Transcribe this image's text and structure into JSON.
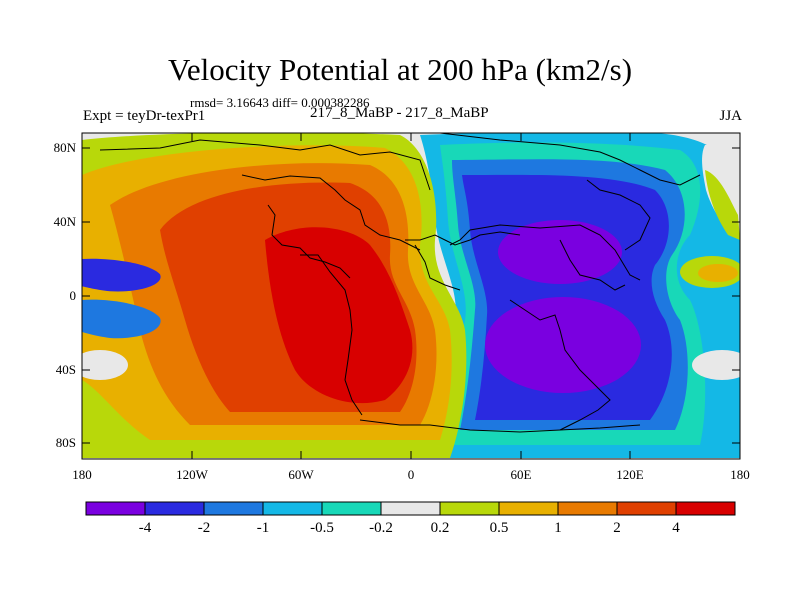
{
  "title": "Velocity Potential at 200 hPa (km2/s)",
  "stats": "rmsd= 3.16643 diff= 0.000382286",
  "experiment": "Expt = teyDr-texPr1",
  "comparison": "217_8_MaBP - 217_8_MaBP",
  "season": "JJA",
  "y_axis_labels": [
    "80N",
    "40N",
    "0",
    "40S",
    "80S"
  ],
  "x_axis_labels": [
    "180",
    "120W",
    "60W",
    "0",
    "60E",
    "120E",
    "180"
  ],
  "colorbar": {
    "labels": [
      "-4",
      "-2",
      "-1",
      "-0.5",
      "-0.2",
      "0.2",
      "0.5",
      "1",
      "2",
      "4"
    ],
    "colors": [
      "#7a00e0",
      "#2a2ae0",
      "#1e78e0",
      "#14b8e6",
      "#18d8b8",
      "#e8e8e8",
      "#b8d80a",
      "#e8b000",
      "#e87a00",
      "#e04000",
      "#d80000"
    ]
  }
}
